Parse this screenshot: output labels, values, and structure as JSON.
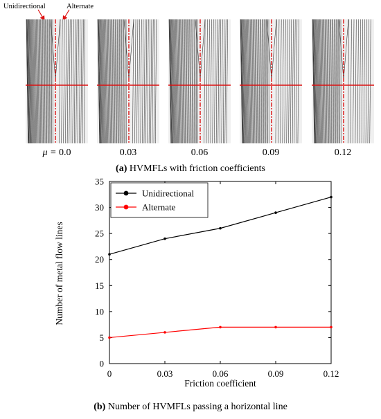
{
  "panel_a": {
    "annotations": [
      "Unidirectional",
      "Alternate"
    ],
    "mu_prefix": "μ = ",
    "mu_labels": [
      "0.0",
      "0.03",
      "0.06",
      "0.09",
      "0.12"
    ],
    "caption_letter": "(a)",
    "caption_text": " HVMFLs with friction coefficients",
    "line_color": "#333333",
    "marker_color": "#dd1111",
    "background_color": "#f0f0f0"
  },
  "panel_b": {
    "caption_letter": "(b)",
    "caption_text": " Number of HVMFLs passing a horizontal line"
  },
  "chart_data": {
    "type": "line",
    "x": [
      0,
      0.03,
      0.06,
      0.09,
      0.12
    ],
    "x_tick_labels": [
      "0",
      "0.03",
      "0.06",
      "0.09",
      "0.12"
    ],
    "y_tick_labels": [
      "0",
      "5",
      "10",
      "15",
      "20",
      "25",
      "30",
      "35"
    ],
    "xlim": [
      0,
      0.12
    ],
    "ylim": [
      0,
      35
    ],
    "xlabel": "Friction coefficient",
    "ylabel": "Number of metal flow lines",
    "legend_position": "top-left",
    "grid": false,
    "series": [
      {
        "name": "Unidirectional",
        "values": [
          21,
          24,
          26,
          29,
          32
        ],
        "color": "#000000"
      },
      {
        "name": "Alternate",
        "values": [
          5,
          6,
          7,
          7,
          7
        ],
        "color": "#ff0000"
      }
    ]
  }
}
